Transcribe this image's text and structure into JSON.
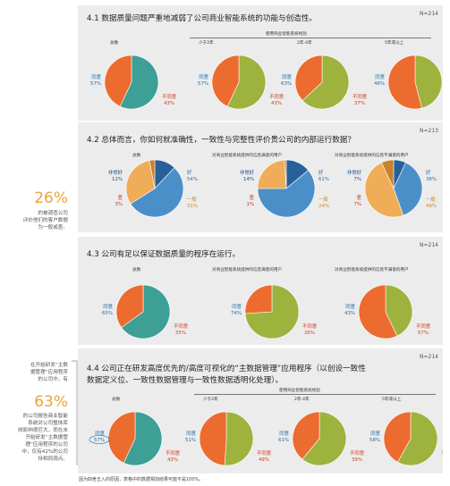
{
  "colors": {
    "agree_teal": "#3d9f95",
    "disagree_orange": "#ec6b2e",
    "accent_orange": "#e8a33d",
    "very_good_blue": "#27609a",
    "good_blue": "#4b8fc9",
    "neutral_tan": "#f0ad57",
    "bad_brown": "#c8812f",
    "very_bad_red": "#d33a28",
    "olive": "#9db33e"
  },
  "panels": [
    {
      "title": "4.1 数据质量问题严重地减弱了公司商业智能系统的功能与创造性。",
      "n": "N=214",
      "span_header": "使用商业智能系统经验",
      "col_labels": [
        "总数",
        "少于2年",
        "2年-4年",
        "5年或以上"
      ]
    },
    {
      "title": "4.2 总体而言，你如何就准确性，一致性与完整性评价贵公司的内部运行数据？",
      "n": "N=213",
      "col_labels": [
        "总数",
        "对商业智能系统提供的信息满意的用户",
        "对商业智能系统提供的信息不满意的用户"
      ]
    },
    {
      "title": "4.3 公司有足以保证数据质量的程序在运行。",
      "n": "N=214",
      "col_labels": [
        "总数",
        "对商业智能系统提供的信息满意的用户",
        "对商业智能系统提供的信息不满意的用户"
      ]
    },
    {
      "title": "4.4 公司正在研发高度优先的/高度可视化的“主数据管理”应用程序（以创设一致性",
      "title2": "数据定义位、一致性数据管理与一致性数据透明化处理）。",
      "n": "N=214",
      "span_header": "使用商业智能系统经验",
      "col_labels": [
        "总数",
        "少于2年",
        "2年-4年",
        "5年或以上"
      ]
    }
  ],
  "sidebar": [
    {
      "big": "26%",
      "text": [
        "的被调查公司",
        "评价他们的客户数据",
        "为一般或差。"
      ]
    },
    {
      "pre": [
        "在开始研发“主数",
        "据管理”应用程序",
        "的公司中，有"
      ],
      "big": "63%",
      "text": [
        "的公司报告商业智能",
        "系统对公司整体库",
        "线影响很巨大，而在未",
        "开始研发“主数据管",
        "理”应用程序的公司",
        "中，仅有42%的公司",
        "持相同观点。"
      ]
    }
  ],
  "footnote": "因为四舍五入的原因，表格中的数据相加结果可能不是100%。",
  "chart_data": [
    {
      "type": "pie",
      "title": "4.1 数据质量问题严重地减弱了公司商业智能系统的功能与创造性。",
      "charts": [
        {
          "label": "总数",
          "slices": [
            {
              "name": "同意",
              "value": 57
            },
            {
              "name": "不同意",
              "value": 43
            }
          ]
        },
        {
          "label": "少于2年",
          "slices": [
            {
              "name": "同意",
              "value": 57
            },
            {
              "name": "不同意",
              "value": 43
            }
          ]
        },
        {
          "label": "2年-4年",
          "slices": [
            {
              "name": "同意",
              "value": 63
            },
            {
              "name": "不同意",
              "value": 37
            }
          ]
        },
        {
          "label": "5年或以上",
          "slices": [
            {
              "name": "同意",
              "value": 46
            },
            {
              "name": "不同意",
              "value": 54
            }
          ]
        }
      ]
    },
    {
      "type": "pie",
      "title": "4.2 总体而言，你如何就准确性，一致性与完整性评价贵公司的内部运行数据？",
      "charts": [
        {
          "label": "总数",
          "slices": [
            {
              "name": "非常好",
              "value": 12
            },
            {
              "name": "好",
              "value": 54
            },
            {
              "name": "一般",
              "value": 31
            },
            {
              "name": "差",
              "value": 3
            },
            {
              "name": "非常差",
              "value": 0
            }
          ]
        },
        {
          "label": "对商业智能系统提供的信息满意的用户",
          "slices": [
            {
              "name": "非常好",
              "value": 14
            },
            {
              "name": "好",
              "value": 61
            },
            {
              "name": "一般",
              "value": 24
            },
            {
              "name": "差",
              "value": 1
            },
            {
              "name": "非常差",
              "value": 0
            }
          ]
        },
        {
          "label": "对商业智能系统提供的信息不满意的用户",
          "slices": [
            {
              "name": "非常好",
              "value": 7
            },
            {
              "name": "好",
              "value": 38
            },
            {
              "name": "一般",
              "value": 49
            },
            {
              "name": "差",
              "value": 7
            },
            {
              "name": "非常差",
              "value": 0
            }
          ]
        }
      ]
    },
    {
      "type": "pie",
      "title": "4.3 公司有足以保证数据质量的程序在运行。",
      "charts": [
        {
          "label": "总数",
          "slices": [
            {
              "name": "同意",
              "value": 65
            },
            {
              "name": "不同意",
              "value": 35
            }
          ]
        },
        {
          "label": "对商业智能系统提供的信息满意的用户",
          "slices": [
            {
              "name": "同意",
              "value": 74
            },
            {
              "name": "不同意",
              "value": 26
            }
          ]
        },
        {
          "label": "对商业智能系统提供的信息不满意的用户",
          "slices": [
            {
              "name": "同意",
              "value": 43
            },
            {
              "name": "不同意",
              "value": 57
            }
          ]
        }
      ]
    },
    {
      "type": "pie",
      "title": "4.4 公司正在研发高度优先的/高度可视化的“主数据管理”应用程序（以创设一致性数据定义位、一致性数据管理与一致性数据透明化处理）。",
      "charts": [
        {
          "label": "总数",
          "slices": [
            {
              "name": "同意",
              "value": 57
            },
            {
              "name": "不同意",
              "value": 43
            }
          ]
        },
        {
          "label": "少于2年",
          "slices": [
            {
              "name": "同意",
              "value": 51
            },
            {
              "name": "不同意",
              "value": 49
            }
          ]
        },
        {
          "label": "2年-4年",
          "slices": [
            {
              "name": "同意",
              "value": 61
            },
            {
              "name": "不同意",
              "value": 39
            }
          ]
        },
        {
          "label": "5年或以上",
          "slices": [
            {
              "name": "同意",
              "value": 58
            },
            {
              "name": "不同意",
              "value": 42
            }
          ]
        }
      ]
    }
  ]
}
